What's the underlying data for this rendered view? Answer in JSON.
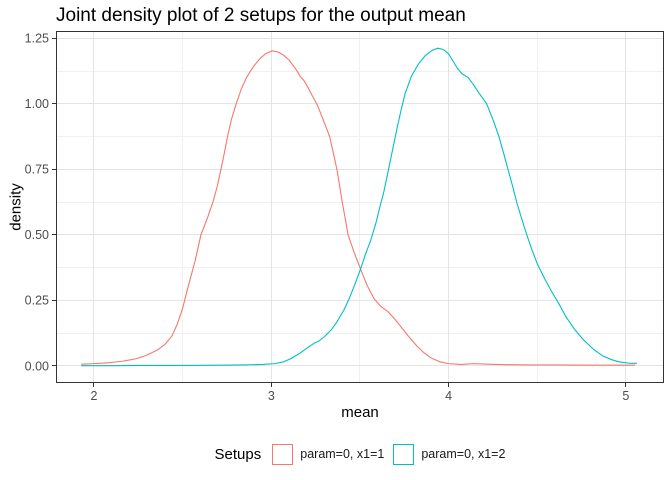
{
  "chart_data": {
    "type": "line",
    "subtype": "kernel-density",
    "title": "Joint density plot of 2 setups for the output mean",
    "xlabel": "mean",
    "ylabel": "density",
    "legend_title": "Setups",
    "legend_position": "bottom",
    "grid": true,
    "xlim": [
      1.7885,
      5.212
    ],
    "ylim": [
      -0.063,
      1.2757
    ],
    "x_ticks": [
      "2",
      "3",
      "4",
      "5"
    ],
    "x_tick_values": [
      2,
      3,
      4,
      5
    ],
    "x_minor": [
      2.5,
      3.5,
      4.5
    ],
    "y_ticks": [
      "0.00",
      "0.25",
      "0.50",
      "0.75",
      "1.00",
      "1.25"
    ],
    "y_tick_values": [
      0,
      0.25,
      0.5,
      0.75,
      1.0,
      1.25
    ],
    "y_minor": [
      0.125,
      0.375,
      0.625,
      0.875,
      1.125
    ],
    "series": [
      {
        "name": "param=0, x1=1",
        "color": "#F8766D",
        "points": [
          [
            1.93,
            0.007
          ],
          [
            2.0,
            0.009
          ],
          [
            2.08,
            0.012
          ],
          [
            2.16,
            0.018
          ],
          [
            2.24,
            0.028
          ],
          [
            2.3,
            0.042
          ],
          [
            2.36,
            0.062
          ],
          [
            2.4,
            0.082
          ],
          [
            2.44,
            0.115
          ],
          [
            2.47,
            0.16
          ],
          [
            2.5,
            0.22
          ],
          [
            2.53,
            0.3
          ],
          [
            2.57,
            0.4
          ],
          [
            2.603,
            0.5
          ],
          [
            2.64,
            0.565
          ],
          [
            2.671,
            0.625
          ],
          [
            2.695,
            0.685
          ],
          [
            2.716,
            0.75
          ],
          [
            2.735,
            0.812
          ],
          [
            2.753,
            0.875
          ],
          [
            2.775,
            0.94
          ],
          [
            2.802,
            1.0
          ],
          [
            2.83,
            1.055
          ],
          [
            2.86,
            1.1
          ],
          [
            2.9,
            1.143
          ],
          [
            2.94,
            1.175
          ],
          [
            2.97,
            1.192
          ],
          [
            3.005,
            1.202
          ],
          [
            3.04,
            1.197
          ],
          [
            3.07,
            1.185
          ],
          [
            3.1,
            1.167
          ],
          [
            3.14,
            1.13
          ],
          [
            3.165,
            1.103
          ],
          [
            3.185,
            1.088
          ],
          [
            3.21,
            1.058
          ],
          [
            3.23,
            1.032
          ],
          [
            3.26,
            0.995
          ],
          [
            3.295,
            0.935
          ],
          [
            3.329,
            0.875
          ],
          [
            3.35,
            0.812
          ],
          [
            3.37,
            0.75
          ],
          [
            3.385,
            0.688
          ],
          [
            3.4,
            0.625
          ],
          [
            3.417,
            0.562
          ],
          [
            3.433,
            0.5
          ],
          [
            3.468,
            0.432
          ],
          [
            3.503,
            0.37
          ],
          [
            3.54,
            0.308
          ],
          [
            3.58,
            0.256
          ],
          [
            3.62,
            0.226
          ],
          [
            3.66,
            0.206
          ],
          [
            3.7,
            0.176
          ],
          [
            3.74,
            0.142
          ],
          [
            3.78,
            0.108
          ],
          [
            3.82,
            0.077
          ],
          [
            3.86,
            0.051
          ],
          [
            3.9,
            0.031
          ],
          [
            3.95,
            0.016
          ],
          [
            4.0,
            0.009
          ],
          [
            4.07,
            0.006
          ],
          [
            4.14,
            0.009
          ],
          [
            4.22,
            0.007
          ],
          [
            4.32,
            0.005
          ],
          [
            4.45,
            0.004
          ],
          [
            4.6,
            0.004
          ],
          [
            4.8,
            0.003
          ],
          [
            5.0,
            0.003
          ],
          [
            5.05,
            0.003
          ]
        ]
      },
      {
        "name": "param=0, x1=2",
        "color": "#00BFC4",
        "points": [
          [
            1.93,
            0.001
          ],
          [
            2.1,
            0.001
          ],
          [
            2.3,
            0.002
          ],
          [
            2.5,
            0.002
          ],
          [
            2.7,
            0.003
          ],
          [
            2.85,
            0.004
          ],
          [
            2.95,
            0.006
          ],
          [
            3.02,
            0.009
          ],
          [
            3.07,
            0.016
          ],
          [
            3.11,
            0.028
          ],
          [
            3.16,
            0.048
          ],
          [
            3.2,
            0.068
          ],
          [
            3.24,
            0.086
          ],
          [
            3.27,
            0.096
          ],
          [
            3.3,
            0.112
          ],
          [
            3.34,
            0.139
          ],
          [
            3.37,
            0.168
          ],
          [
            3.41,
            0.214
          ],
          [
            3.44,
            0.258
          ],
          [
            3.47,
            0.309
          ],
          [
            3.503,
            0.369
          ],
          [
            3.53,
            0.424
          ],
          [
            3.56,
            0.478
          ],
          [
            3.59,
            0.545
          ],
          [
            3.61,
            0.6
          ],
          [
            3.635,
            0.665
          ],
          [
            3.655,
            0.73
          ],
          [
            3.675,
            0.795
          ],
          [
            3.695,
            0.86
          ],
          [
            3.715,
            0.925
          ],
          [
            3.735,
            0.985
          ],
          [
            3.755,
            1.04
          ],
          [
            3.79,
            1.105
          ],
          [
            3.83,
            1.152
          ],
          [
            3.87,
            1.185
          ],
          [
            3.91,
            1.205
          ],
          [
            3.94,
            1.212
          ],
          [
            3.97,
            1.207
          ],
          [
            4.0,
            1.19
          ],
          [
            4.02,
            1.168
          ],
          [
            4.05,
            1.135
          ],
          [
            4.075,
            1.115
          ],
          [
            4.11,
            1.1
          ],
          [
            4.14,
            1.073
          ],
          [
            4.17,
            1.042
          ],
          [
            4.215,
            1.0
          ],
          [
            4.25,
            0.94
          ],
          [
            4.284,
            0.875
          ],
          [
            4.31,
            0.812
          ],
          [
            4.335,
            0.75
          ],
          [
            4.36,
            0.688
          ],
          [
            4.384,
            0.625
          ],
          [
            4.413,
            0.56
          ],
          [
            4.441,
            0.5
          ],
          [
            4.47,
            0.443
          ],
          [
            4.5,
            0.39
          ],
          [
            4.54,
            0.335
          ],
          [
            4.58,
            0.285
          ],
          [
            4.62,
            0.24
          ],
          [
            4.66,
            0.19
          ],
          [
            4.71,
            0.14
          ],
          [
            4.76,
            0.1
          ],
          [
            4.82,
            0.062
          ],
          [
            4.87,
            0.038
          ],
          [
            4.92,
            0.024
          ],
          [
            4.96,
            0.016
          ],
          [
            5.0,
            0.012
          ],
          [
            5.03,
            0.01
          ],
          [
            5.06,
            0.01
          ]
        ]
      }
    ],
    "style": {
      "grid_major_color": "#E4E4E4",
      "grid_minor_color": "#F0F0F0",
      "panel_border_color": "#333333",
      "tick_color": "#333333",
      "tick_label_color": "#4D4D4D"
    }
  }
}
